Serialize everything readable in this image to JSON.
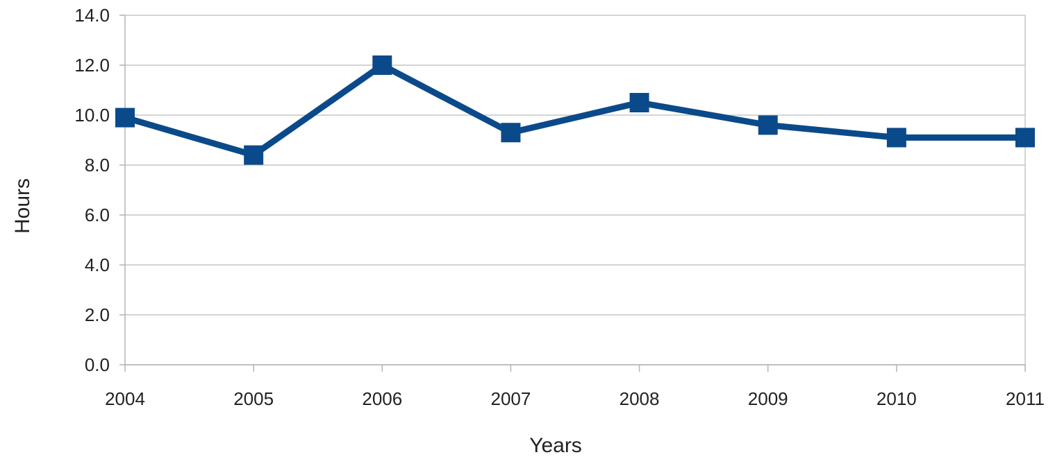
{
  "chart_data": {
    "type": "line",
    "title": "",
    "xlabel": "Years",
    "ylabel": "Hours",
    "categories": [
      "2004",
      "2005",
      "2006",
      "2007",
      "2008",
      "2009",
      "2010",
      "2011"
    ],
    "series": [
      {
        "values": [
          9.9,
          8.4,
          12.0,
          9.3,
          10.5,
          9.6,
          9.1,
          9.1
        ],
        "color": "#0b4a8a"
      }
    ],
    "yticks": [
      "0.0",
      "2.0",
      "4.0",
      "6.0",
      "8.0",
      "10.0",
      "12.0",
      "14.0"
    ],
    "ylim": [
      0,
      14
    ],
    "grid": true,
    "legend": "none"
  }
}
